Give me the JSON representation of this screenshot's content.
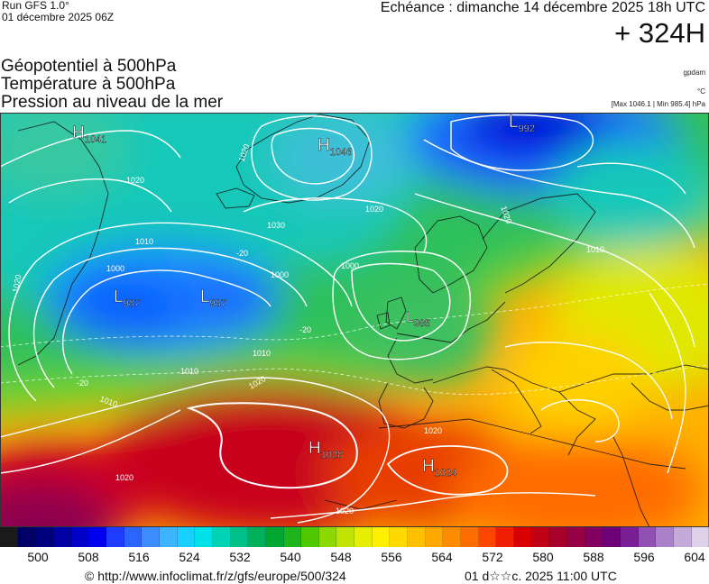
{
  "header": {
    "run_label": "Run GFS 1.0°",
    "run_date": "01 décembre 2025 06Z",
    "echeance": "Echéance : dimanche 14 décembre 2025 18h UTC",
    "lead_time": "+ 324H"
  },
  "titles": {
    "line1": "Géopotentiel à 500hPa",
    "line2": "Température à 500hPa",
    "line3": "Pression au niveau de la mer"
  },
  "units": {
    "geopotential": "gpdam",
    "temperature": "°C",
    "pressure_range": "[Max 1046.1 | Min 985.4] hPa"
  },
  "pressure_centers": [
    {
      "type": "H",
      "value": "1041"
    },
    {
      "type": "H",
      "value": "1046"
    },
    {
      "type": "L",
      "value": "992"
    },
    {
      "type": "L",
      "value": "987"
    },
    {
      "type": "L",
      "value": "987"
    },
    {
      "type": "L",
      "value": "985"
    },
    {
      "type": "H",
      "value": "1028"
    },
    {
      "type": "H",
      "value": "1024"
    }
  ],
  "isobar_labels": [
    "1020",
    "1030",
    "1020",
    "1010",
    "1000",
    "1000",
    "1020",
    "1010",
    "1000",
    "1010",
    "1020",
    "1020",
    "1010",
    "1020",
    "1020",
    "1020",
    "1010",
    "1020"
  ],
  "isotherm_labels": [
    "-20",
    "-20",
    "-20"
  ],
  "colorbar": {
    "colors": [
      "#1a1a1a",
      "#000066",
      "#00007f",
      "#0000a3",
      "#0000c8",
      "#0000ee",
      "#1e3cff",
      "#2c64ff",
      "#3c8cff",
      "#3cb4ff",
      "#18d0ff",
      "#00e0e8",
      "#00d2b4",
      "#00c08a",
      "#00b05a",
      "#00a832",
      "#1eb41e",
      "#50c800",
      "#8cd800",
      "#c0e400",
      "#e6ee00",
      "#fff000",
      "#ffd800",
      "#ffc000",
      "#ffa800",
      "#ff8c00",
      "#ff6c00",
      "#ff4600",
      "#f01e00",
      "#d80000",
      "#c00014",
      "#a8002c",
      "#960046",
      "#820060",
      "#6e0078",
      "#7a1e96",
      "#9050b4",
      "#aa80c8",
      "#c4aad8",
      "#ddd0e8"
    ],
    "labels": [
      "500",
      "508",
      "516",
      "524",
      "532",
      "540",
      "548",
      "556",
      "564",
      "572",
      "580",
      "588",
      "596",
      "604"
    ]
  },
  "footer": {
    "credit": "© http://www.infoclimat.fr/z/gfs/europe/500/324",
    "issued": "01 d☆☆c. 2025 11:00 UTC"
  }
}
